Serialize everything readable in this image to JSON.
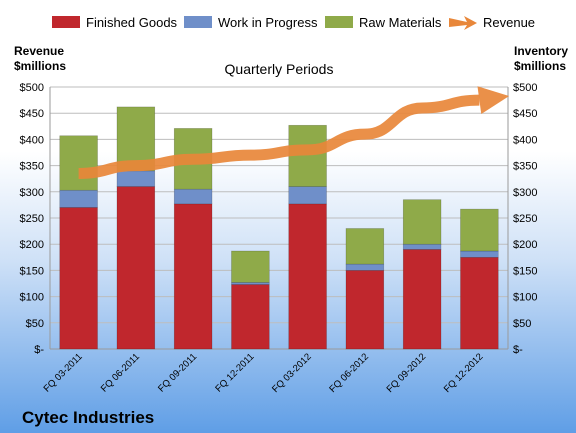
{
  "chart_data": {
    "type": "bar",
    "stacked": true,
    "company": "Cytec Industries",
    "title": "Quarterly Periods",
    "ylabel_left": "Revenue\n$millions",
    "ylabel_right": "Inventory\n$millions",
    "ylim": [
      0,
      500
    ],
    "yticks": [
      0,
      50,
      100,
      150,
      200,
      250,
      300,
      350,
      400,
      450,
      500
    ],
    "ytick_labels": [
      "$-",
      "$50",
      "$100",
      "$150",
      "$200",
      "$250",
      "$300",
      "$350",
      "$400",
      "$450",
      "$500"
    ],
    "categories": [
      "FQ 03-2011",
      "FQ 06-2011",
      "FQ 09-2011",
      "FQ 12-2011",
      "FQ 03-2012",
      "FQ 06-2012",
      "FQ 09-2012",
      "FQ 12-2012"
    ],
    "series": [
      {
        "name": "Finished Goods",
        "color": "#c0272d",
        "values": [
          270,
          310,
          277,
          123,
          277,
          150,
          190,
          175
        ]
      },
      {
        "name": "Work in Progress",
        "color": "#6f8fc9",
        "values": [
          33,
          30,
          28,
          4,
          33,
          12,
          10,
          12
        ]
      },
      {
        "name": "Raw Materials",
        "color": "#8faa49",
        "values": [
          104,
          122,
          116,
          60,
          117,
          68,
          85,
          80
        ]
      },
      {
        "name": "Revenue",
        "color": "#e8873a",
        "type": "line",
        "values": [
          335,
          350,
          362,
          370,
          380,
          410,
          460,
          475
        ]
      }
    ],
    "legend_position": "top"
  }
}
